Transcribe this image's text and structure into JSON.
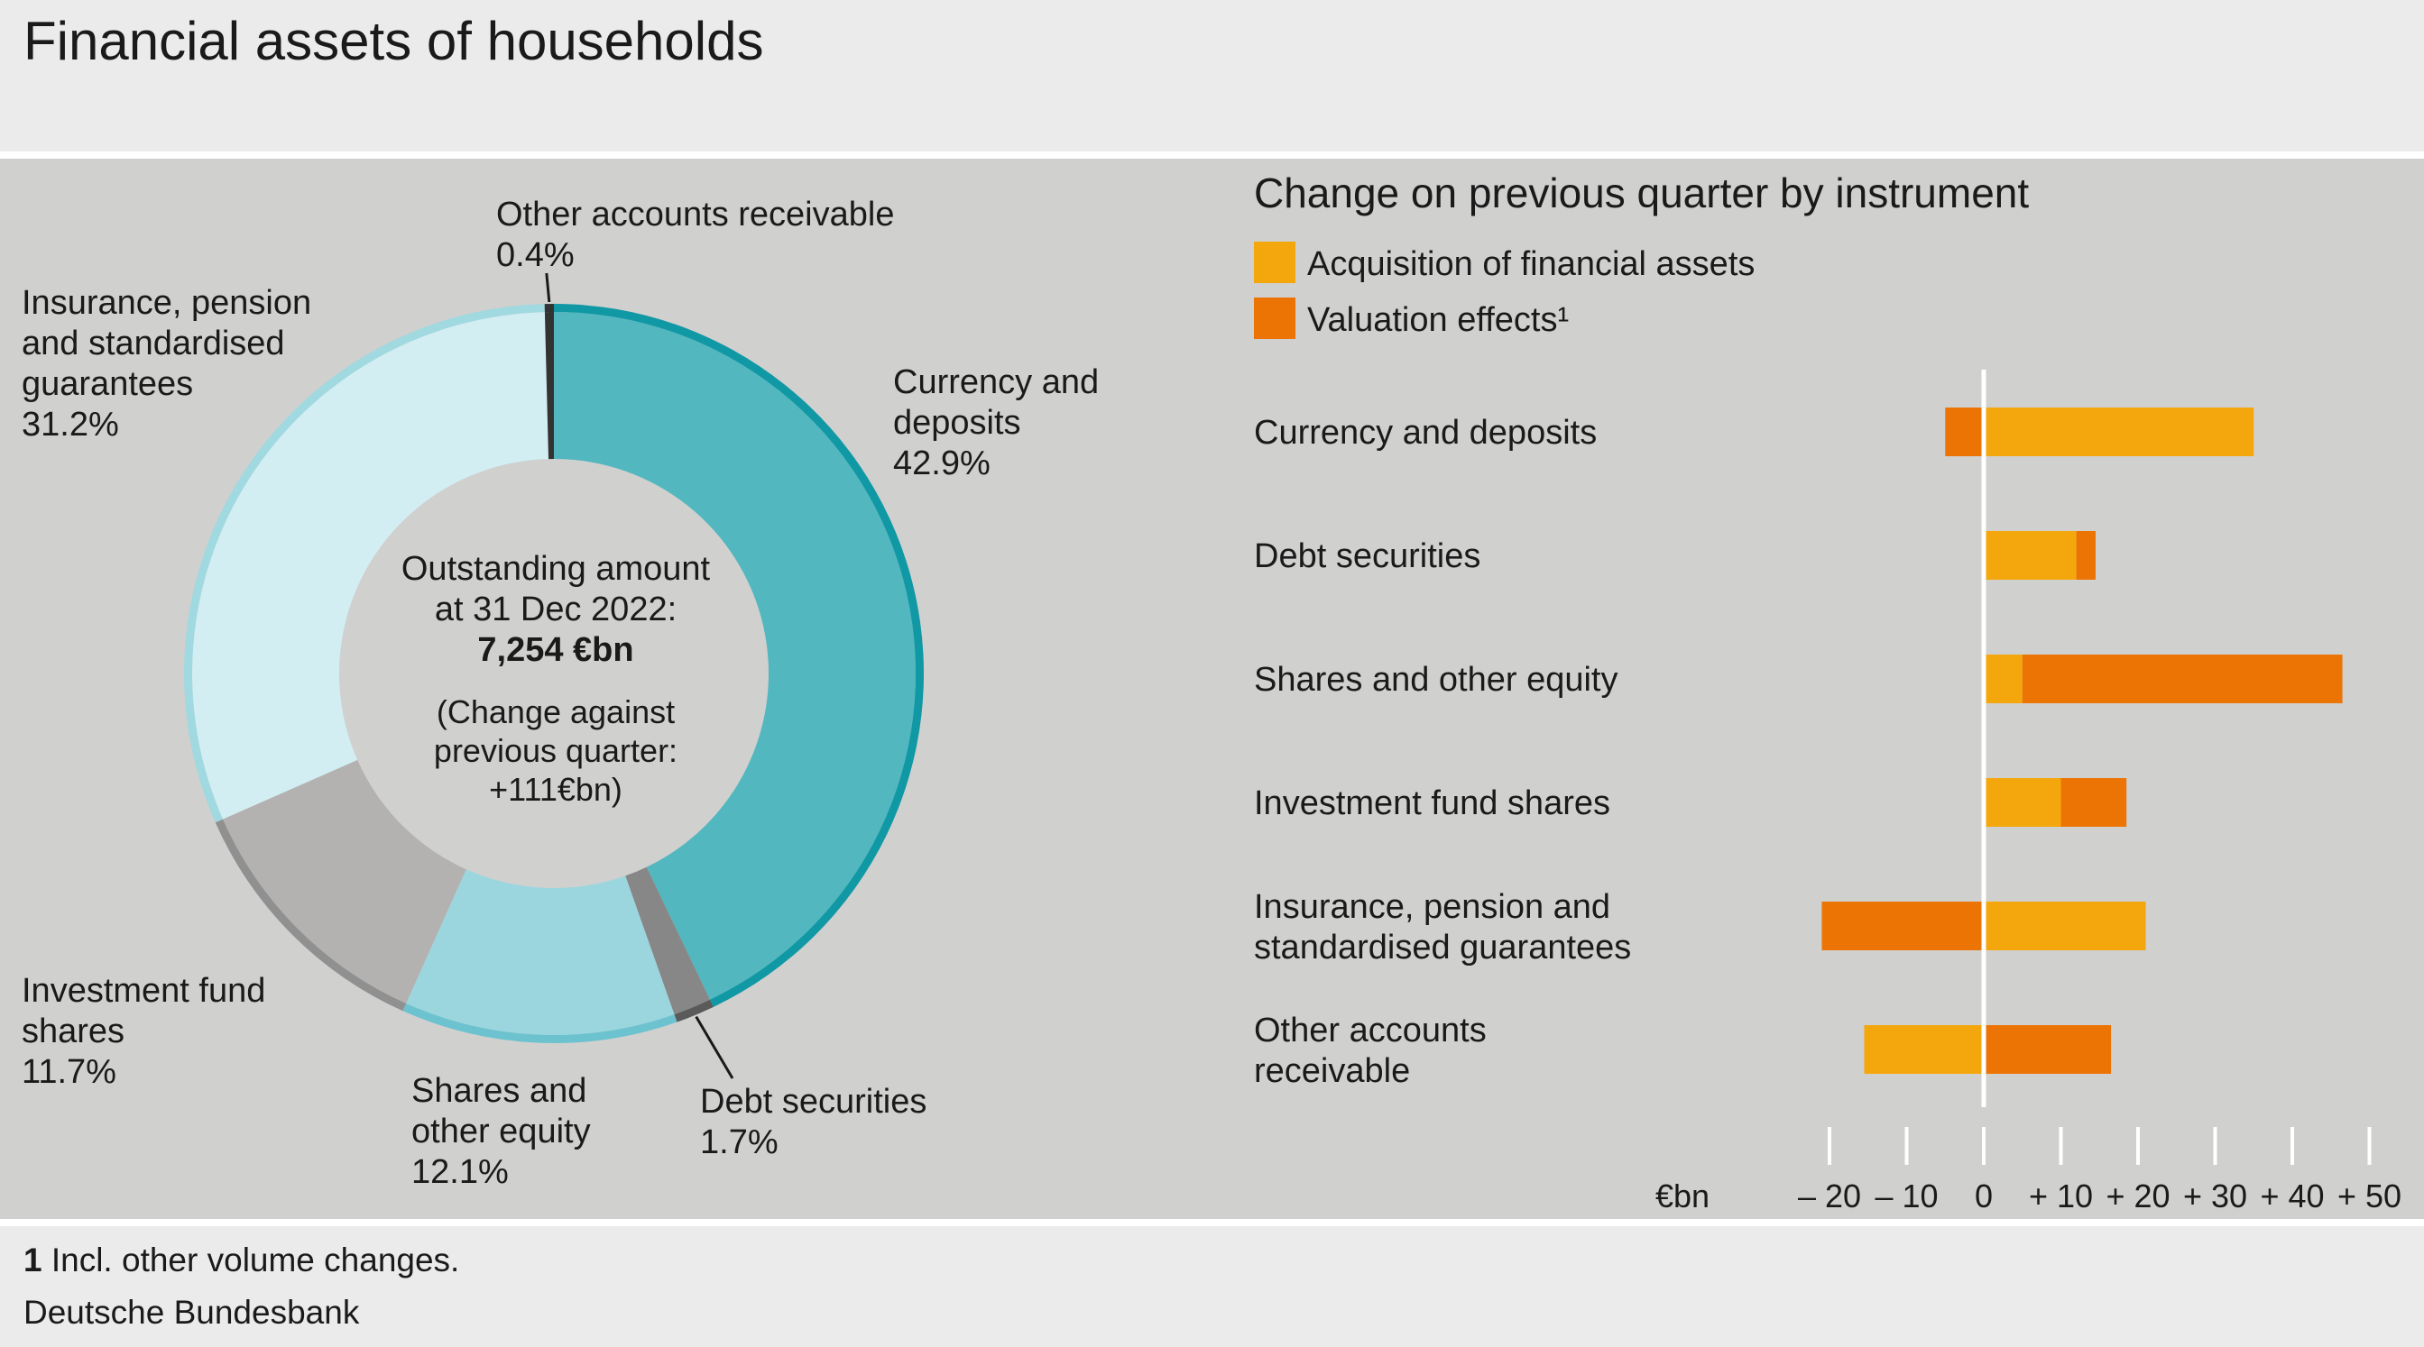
{
  "title": "Financial assets of households",
  "footnote": {
    "marker": "1",
    "text": "Incl. other volume changes."
  },
  "source": "Deutsche Bundesbank",
  "colors": {
    "currency_deposits": "#52b7be",
    "currency_deposits_ring": "#1098a5",
    "debt_securities": "#878787",
    "debt_securities_ring": "#5a5a5a",
    "shares_equity": "#9bd6de",
    "shares_equity_ring": "#6cc3cf",
    "investment_fund": "#b3b2b1",
    "investment_fund_ring": "#909090",
    "insurance_pension": "#d3eef2",
    "insurance_pension_ring": "#a0d9e0",
    "other_accounts": "#333333",
    "acquisition": "#f4a70c",
    "valuation": "#ec7405",
    "zero_line": "#ffffff"
  },
  "chart_data": [
    {
      "type": "pie",
      "variant": "donut",
      "center": {
        "line1": "Outstanding amount",
        "line2": "at 31 Dec 2022:",
        "line3": "7,254 €bn",
        "line4": "(Change against",
        "line5": "previous quarter:",
        "line6": "+111€bn)"
      },
      "slices": [
        {
          "key": "currency_deposits",
          "label_lines": [
            "Currency and",
            "deposits"
          ],
          "value_label": "42.9%",
          "value": 42.9
        },
        {
          "key": "debt_securities",
          "label_lines": [
            "Debt securities"
          ],
          "value_label": "1.7%",
          "value": 1.7
        },
        {
          "key": "shares_equity",
          "label_lines": [
            "Shares and",
            "other equity"
          ],
          "value_label": "12.1%",
          "value": 12.1
        },
        {
          "key": "investment_fund",
          "label_lines": [
            "Investment fund",
            "shares"
          ],
          "value_label": "11.7%",
          "value": 11.7
        },
        {
          "key": "insurance_pension",
          "label_lines": [
            "Insurance, pension",
            "and standardised",
            "guarantees"
          ],
          "value_label": "31.2%",
          "value": 31.2
        },
        {
          "key": "other_accounts",
          "label_lines": [
            "Other accounts receivable"
          ],
          "value_label": "0.4%",
          "value": 0.4
        }
      ]
    },
    {
      "type": "bar",
      "orientation": "horizontal",
      "stacked": true,
      "title": "Change on previous quarter by instrument",
      "unit_label": "€bn",
      "xlim": [
        -20,
        50
      ],
      "xticks": [
        -20,
        -10,
        0,
        10,
        20,
        30,
        40,
        50
      ],
      "xtick_labels": [
        "– 20",
        "– 10",
        "0",
        "+ 10",
        "+ 20",
        "+ 30",
        "+ 40",
        "+ 50"
      ],
      "legend": {
        "position": "top-left"
      },
      "categories": [
        [
          "Currency and deposits"
        ],
        [
          "Debt securities"
        ],
        [
          "Shares and other equity"
        ],
        [
          "Investment fund shares"
        ],
        [
          "Insurance, pension and",
          "standardised guarantees"
        ],
        [
          "Other accounts",
          "receivable"
        ]
      ],
      "series": [
        {
          "name": "Acquisition of financial assets",
          "color_key": "acquisition",
          "values": [
            35,
            12,
            5,
            10,
            21,
            -15.5
          ]
        },
        {
          "name": "Valuation effects¹",
          "color_key": "valuation",
          "values": [
            -5,
            2.5,
            41.5,
            8.5,
            -21,
            16.5
          ]
        }
      ]
    }
  ]
}
